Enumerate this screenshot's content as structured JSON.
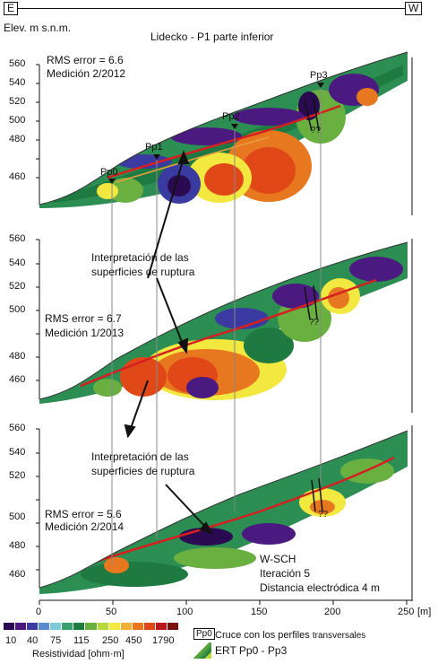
{
  "header": {
    "left_dir": "E",
    "right_dir": "W",
    "y_axis_label": "Elev. m s.n.m.",
    "title": "Lidecko - P1 parte inferior"
  },
  "panels": [
    {
      "y_ticks": [
        "560",
        "540",
        "520",
        "500",
        "480",
        "460"
      ],
      "rms": "RMS error = 6.6",
      "medicion": "Medición 2/2012",
      "profiles": [
        "Pp0",
        "Pp1",
        "Pp2",
        "Pp3"
      ],
      "unknown_marks": [
        "??"
      ]
    },
    {
      "y_ticks": [
        "560",
        "540",
        "520",
        "500",
        "480",
        "460"
      ],
      "rms": "RMS error = 6.7",
      "medicion": "Medición 1/2013",
      "interp_line1": "Interpretación de las",
      "interp_line2": "superficies de ruptura",
      "unknown_marks": [
        "??"
      ]
    },
    {
      "y_ticks": [
        "560",
        "540",
        "520",
        "500",
        "480",
        "460"
      ],
      "rms": "RMS error = 5.6",
      "medicion": "Medición 2/2014",
      "interp_line1": "Interpretación de las",
      "interp_line2": "superficies de ruptura",
      "method": "W-SCH",
      "iteration": "Iteración 5",
      "spacing": "Distancia electródica 4 m",
      "unknown_marks": [
        "??"
      ]
    }
  ],
  "x_axis": {
    "ticks": [
      "0",
      "50",
      "100",
      "150",
      "200",
      "250"
    ],
    "unit": "[m]"
  },
  "legend": {
    "colors": [
      "#2a0a50",
      "#4a1a80",
      "#3a3aa0",
      "#5a8ad0",
      "#7ec8d8",
      "#3aa070",
      "#1e7a40",
      "#6ab040",
      "#b8d838",
      "#f2e840",
      "#f0b030",
      "#e87820",
      "#e04818",
      "#b81818",
      "#7a1010"
    ],
    "value_labels": [
      "10",
      "40",
      "75",
      "115",
      "250",
      "450",
      "1790"
    ],
    "title": "Resistividad [ohm·m]",
    "pp0_symbol": "Pp0",
    "crossing_text": "Cruce con los perfiles",
    "crossing_small": "transversales",
    "ert_text": "ERT  Pp0 - Pp3"
  }
}
